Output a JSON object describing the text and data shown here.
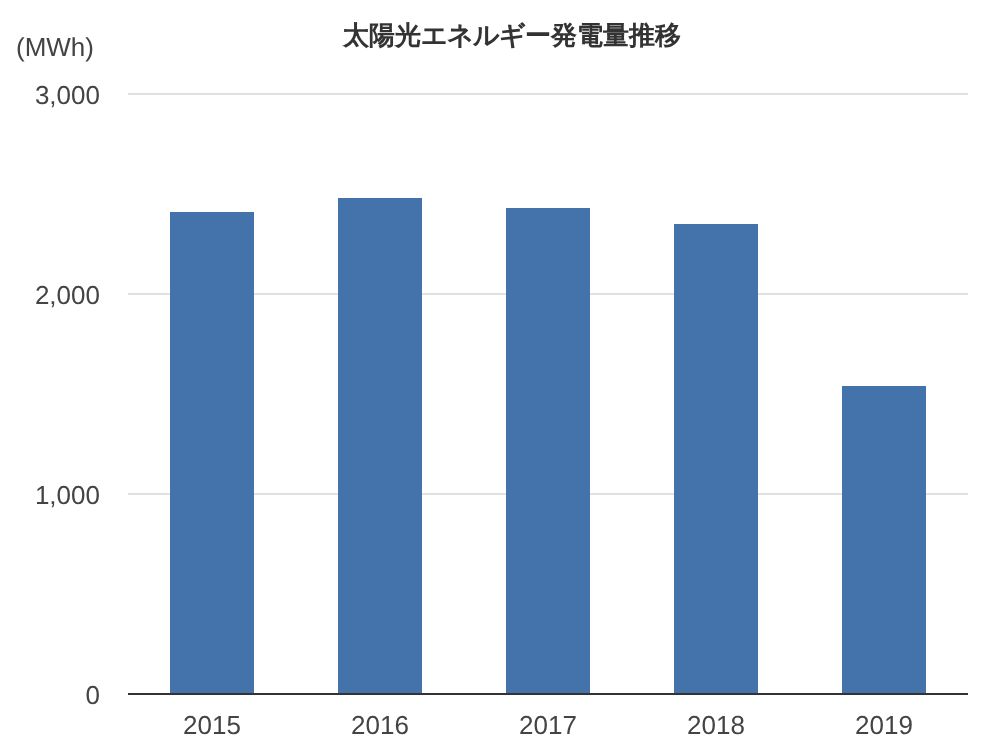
{
  "chart_data": {
    "type": "bar",
    "title": "太陽光エネルギー発電量推移",
    "ylabel": "(MWh)",
    "categories": [
      "2015",
      "2016",
      "2017",
      "2018",
      "2019"
    ],
    "values": [
      2410,
      2480,
      2430,
      2350,
      1540
    ],
    "color": "#4472aa",
    "ylim": [
      0,
      3000
    ],
    "yticks": [
      {
        "value": 0,
        "label": "0"
      },
      {
        "value": 1000,
        "label": "1,000"
      },
      {
        "value": 2000,
        "label": "2,000"
      },
      {
        "value": 3000,
        "label": "3,000"
      }
    ],
    "grid": "y"
  }
}
